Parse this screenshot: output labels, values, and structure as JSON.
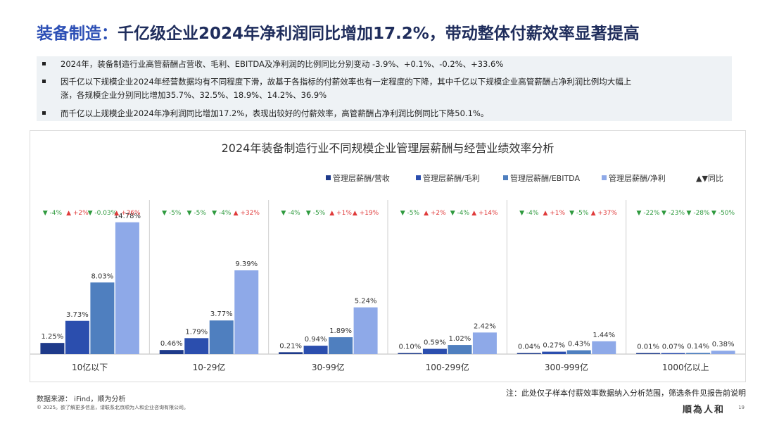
{
  "header": {
    "title_highlight": "装备制造：",
    "title_rest": "千亿级企业2024年净利润同比增加17.2%，带动整体付薪效率显著提高"
  },
  "bullets": [
    "2024年，装备制造行业高管薪酬占营收、毛利、EBITDA及净利润的比例同比分别变动 -3.9%、+0.1%、-0.2%、+33.6%",
    "因千亿以下规模企业2024年经营数据均有不同程度下滑，故基于各指标的付薪效率也有一定程度的下降，其中千亿以下规模企业高管薪酬占净利润比例均大幅上",
    "涨，各规模企业分别同比增加35.7%、32.5%、18.9%、14.2%、36.9%",
    "而千亿以上规模企业2024年净利润同比增加17.2%，表现出较好的付薪效率，高管薪酬占净利润比例同比下降50.1%。"
  ],
  "chart_data": {
    "type": "bar",
    "title": "2024年装备制造行业不同规模企业管理层薪酬与经营业绩效率分析",
    "categories": [
      "10亿以下",
      "10-29亿",
      "30-99亿",
      "100-299亿",
      "300-999亿",
      "1000亿以上"
    ],
    "series": [
      {
        "name": "管理层薪酬/营收",
        "color": "#1e3a8a",
        "values": [
          1.25,
          0.46,
          0.21,
          0.1,
          0.04,
          0.01
        ],
        "labels": [
          "1.25%",
          "0.46%",
          "0.21%",
          "0.10%",
          "0.04%",
          "0.01%"
        ]
      },
      {
        "name": "管理层薪酬/毛利",
        "color": "#2b4eae",
        "values": [
          3.73,
          1.79,
          0.94,
          0.59,
          0.27,
          0.07
        ],
        "labels": [
          "3.73%",
          "1.79%",
          "0.94%",
          "0.59%",
          "0.27%",
          "0.07%"
        ]
      },
      {
        "name": "管理层薪酬/EBITDA",
        "color": "#4f7fbf",
        "values": [
          8.03,
          3.77,
          1.89,
          1.02,
          0.43,
          0.14
        ],
        "labels": [
          "8.03%",
          "3.77%",
          "1.89%",
          "1.02%",
          "0.43%",
          "0.14%"
        ]
      },
      {
        "name": "管理层薪酬/净利",
        "color": "#8ea9e8",
        "values": [
          14.78,
          9.39,
          5.24,
          2.42,
          1.44,
          0.38
        ],
        "labels": [
          "14.78%",
          "9.39%",
          "5.24%",
          "2.42%",
          "1.44%",
          "0.38%"
        ]
      }
    ],
    "yoy_legend": "▲▼同比",
    "yoy": [
      [
        {
          "dir": "down",
          "text": "-4%"
        },
        {
          "dir": "up",
          "text": "+2%"
        },
        {
          "dir": "down",
          "text": "-0.03%"
        },
        {
          "dir": "up",
          "text": "+36%"
        }
      ],
      [
        {
          "dir": "down",
          "text": "-5%"
        },
        {
          "dir": "down",
          "text": "-5%"
        },
        {
          "dir": "down",
          "text": "-4%"
        },
        {
          "dir": "up",
          "text": "+32%"
        }
      ],
      [
        {
          "dir": "down",
          "text": "-4%"
        },
        {
          "dir": "down",
          "text": "-5%"
        },
        {
          "dir": "up",
          "text": "+1%"
        },
        {
          "dir": "up",
          "text": "+19%"
        }
      ],
      [
        {
          "dir": "down",
          "text": "-5%"
        },
        {
          "dir": "up",
          "text": "+2%"
        },
        {
          "dir": "down",
          "text": "-4%"
        },
        {
          "dir": "up",
          "text": "+14%"
        }
      ],
      [
        {
          "dir": "down",
          "text": "-4%"
        },
        {
          "dir": "up",
          "text": "+1%"
        },
        {
          "dir": "down",
          "text": "-5%"
        },
        {
          "dir": "up",
          "text": "+37%"
        }
      ],
      [
        {
          "dir": "down",
          "text": "-22%"
        },
        {
          "dir": "down",
          "text": "-23%"
        },
        {
          "dir": "down",
          "text": "-28%"
        },
        {
          "dir": "down",
          "text": "-50%"
        }
      ]
    ],
    "colors": {
      "up": "#e03a3a",
      "down": "#2e9a3e"
    },
    "ylim": [
      0,
      15
    ]
  },
  "footer": {
    "source": "数据来源： iFind，顺为分析",
    "note": "注：此处仅子样本付薪效率数据纳入分析范围，筛选条件见报告前说明",
    "copyright": "© 2025。欲了解更多信息，请联系北京顺为人和企业咨询有限公司。",
    "logo": "順為人和",
    "page": "19"
  }
}
